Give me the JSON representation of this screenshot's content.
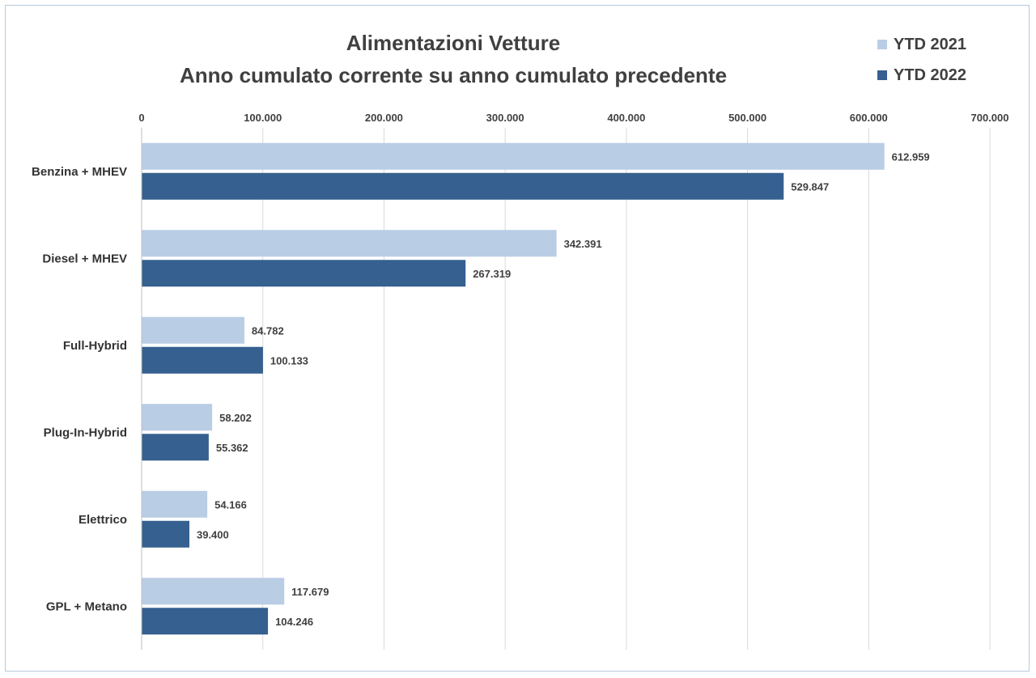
{
  "chart_data": {
    "type": "bar",
    "orientation": "horizontal",
    "title": "Alimentazioni Vetture",
    "subtitle": "Anno cumulato corrente su anno cumulato precedente",
    "categories": [
      "Benzina + MHEV",
      "Diesel + MHEV",
      "Full-Hybrid",
      "Plug-In-Hybrid",
      "Elettrico",
      "GPL + Metano"
    ],
    "series": [
      {
        "name": "YTD 2021",
        "color": "#b9cde5",
        "values": [
          612959,
          342391,
          84782,
          58202,
          54166,
          117679
        ],
        "labels": [
          "612.959",
          "342.391",
          "84.782",
          "58.202",
          "54.166",
          "117.679"
        ]
      },
      {
        "name": "YTD 2022",
        "color": "#35608f",
        "values": [
          529847,
          267319,
          100133,
          55362,
          39400,
          104246
        ],
        "labels": [
          "529.847",
          "267.319",
          "100.133",
          "55.362",
          "39.400",
          "104.246"
        ]
      }
    ],
    "xlim": [
      0,
      700000
    ],
    "xticks": [
      "0",
      "100.000",
      "200.000",
      "300.000",
      "400.000",
      "500.000",
      "600.000",
      "700.000"
    ],
    "xaxis_position": "top",
    "grid": true,
    "legend_position": "top-right"
  }
}
